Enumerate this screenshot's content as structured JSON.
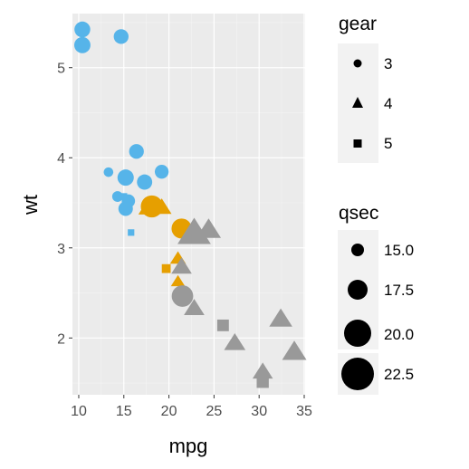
{
  "chart_data": {
    "type": "scatter",
    "xlabel": "mpg",
    "ylabel": "wt",
    "xlim": [
      9.3,
      35.1
    ],
    "ylim": [
      1.37,
      5.6
    ],
    "x_ticks": [
      10,
      15,
      20,
      25,
      30,
      35
    ],
    "y_ticks": [
      2,
      3,
      4,
      5
    ],
    "grid": true,
    "legend_placement": "right",
    "shape_legend": {
      "title": "gear",
      "items": [
        {
          "label": "3",
          "shape": "circle"
        },
        {
          "label": "4",
          "shape": "triangle"
        },
        {
          "label": "5",
          "shape": "square"
        }
      ]
    },
    "size_legend": {
      "title": "qsec",
      "items": [
        {
          "label": "15.0",
          "value": 15.0
        },
        {
          "label": "17.5",
          "value": 17.5
        },
        {
          "label": "20.0",
          "value": 20.0
        },
        {
          "label": "22.5",
          "value": 22.5
        }
      ]
    },
    "colors": {
      "panel": "#ebebeb",
      "grid_major": "#ffffff",
      "grid_minor": "#f4f4f4",
      "cyl_4": "#999999",
      "cyl_6": "#E69F00",
      "cyl_8": "#56B4E9",
      "legend_key": "#f2f2f2"
    },
    "points": [
      {
        "mpg": 10.4,
        "wt": 5.25,
        "gear": 3,
        "qsec": 17.98,
        "cyl": 8
      },
      {
        "mpg": 10.4,
        "wt": 5.424,
        "gear": 3,
        "qsec": 17.82,
        "cyl": 8
      },
      {
        "mpg": 14.7,
        "wt": 5.345,
        "gear": 3,
        "qsec": 17.42,
        "cyl": 8
      },
      {
        "mpg": 13.3,
        "wt": 3.84,
        "gear": 3,
        "qsec": 15.41,
        "cyl": 8
      },
      {
        "mpg": 14.3,
        "wt": 3.57,
        "gear": 3,
        "qsec": 15.84,
        "cyl": 8
      },
      {
        "mpg": 15.2,
        "wt": 3.78,
        "gear": 3,
        "qsec": 18.0,
        "cyl": 8
      },
      {
        "mpg": 15.2,
        "wt": 3.435,
        "gear": 3,
        "qsec": 17.3,
        "cyl": 8
      },
      {
        "mpg": 15.5,
        "wt": 3.52,
        "gear": 3,
        "qsec": 16.87,
        "cyl": 8
      },
      {
        "mpg": 16.4,
        "wt": 4.07,
        "gear": 3,
        "qsec": 17.4,
        "cyl": 8
      },
      {
        "mpg": 17.3,
        "wt": 3.73,
        "gear": 3,
        "qsec": 17.6,
        "cyl": 8
      },
      {
        "mpg": 19.2,
        "wt": 3.845,
        "gear": 3,
        "qsec": 17.05,
        "cyl": 8
      },
      {
        "mpg": 15.8,
        "wt": 3.17,
        "gear": 5,
        "qsec": 14.5,
        "cyl": 8
      },
      {
        "mpg": 15.0,
        "wt": 3.57,
        "gear": 5,
        "qsec": 14.6,
        "cyl": 8
      },
      {
        "mpg": 18.1,
        "wt": 3.46,
        "gear": 3,
        "qsec": 20.22,
        "cyl": 6
      },
      {
        "mpg": 21.4,
        "wt": 3.215,
        "gear": 3,
        "qsec": 19.44,
        "cyl": 6
      },
      {
        "mpg": 17.8,
        "wt": 3.44,
        "gear": 4,
        "qsec": 18.9,
        "cyl": 6
      },
      {
        "mpg": 19.2,
        "wt": 3.44,
        "gear": 4,
        "qsec": 18.3,
        "cyl": 6
      },
      {
        "mpg": 21.0,
        "wt": 2.62,
        "gear": 4,
        "qsec": 16.46,
        "cyl": 6
      },
      {
        "mpg": 21.0,
        "wt": 2.875,
        "gear": 4,
        "qsec": 17.02,
        "cyl": 6
      },
      {
        "mpg": 19.7,
        "wt": 2.77,
        "gear": 5,
        "qsec": 15.5,
        "cyl": 6
      },
      {
        "mpg": 21.5,
        "wt": 2.465,
        "gear": 3,
        "qsec": 20.01,
        "cyl": 4
      },
      {
        "mpg": 22.8,
        "wt": 3.15,
        "gear": 4,
        "qsec": 22.9,
        "cyl": 4
      },
      {
        "mpg": 24.4,
        "wt": 3.19,
        "gear": 4,
        "qsec": 20.0,
        "cyl": 4
      },
      {
        "mpg": 21.4,
        "wt": 2.78,
        "gear": 4,
        "qsec": 18.6,
        "cyl": 4
      },
      {
        "mpg": 22.8,
        "wt": 2.32,
        "gear": 4,
        "qsec": 18.61,
        "cyl": 4
      },
      {
        "mpg": 27.3,
        "wt": 1.935,
        "gear": 4,
        "qsec": 18.9,
        "cyl": 4
      },
      {
        "mpg": 32.4,
        "wt": 2.2,
        "gear": 4,
        "qsec": 19.47,
        "cyl": 4
      },
      {
        "mpg": 30.4,
        "wt": 1.615,
        "gear": 4,
        "qsec": 18.52,
        "cyl": 4
      },
      {
        "mpg": 33.9,
        "wt": 1.835,
        "gear": 4,
        "qsec": 19.9,
        "cyl": 4
      },
      {
        "mpg": 26.0,
        "wt": 2.14,
        "gear": 5,
        "qsec": 16.7,
        "cyl": 4
      },
      {
        "mpg": 30.4,
        "wt": 1.513,
        "gear": 5,
        "qsec": 16.9,
        "cyl": 4
      }
    ]
  }
}
